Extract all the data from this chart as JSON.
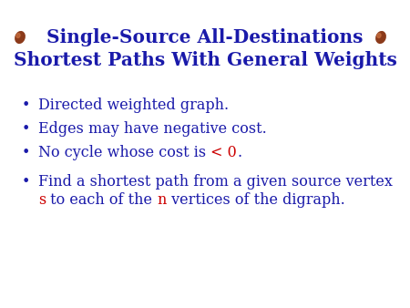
{
  "title_line1": "Single-Source All-Destinations",
  "title_line2": "Shortest Paths With General Weights",
  "title_color": "#1a1aaa",
  "background_color": "#ffffff",
  "bullet_color": "#1a1aaa",
  "text_color": "#1a1aaa",
  "red_color": "#cc0000",
  "bullet_symbol": "•",
  "bullet_items": [
    {
      "parts": [
        {
          "text": "Directed weighted graph.",
          "color": "#1a1aaa",
          "style": "normal"
        }
      ]
    },
    {
      "parts": [
        {
          "text": "Edges may have negative cost.",
          "color": "#1a1aaa",
          "style": "normal"
        }
      ]
    },
    {
      "parts": [
        {
          "text": "No cycle whose cost is ",
          "color": "#1a1aaa",
          "style": "normal"
        },
        {
          "text": "< 0",
          "color": "#cc0000",
          "style": "normal"
        },
        {
          "text": ".",
          "color": "#1a1aaa",
          "style": "normal"
        }
      ]
    },
    {
      "parts": [
        {
          "text": "Find a shortest path from a given source vertex",
          "color": "#1a1aaa",
          "style": "normal"
        }
      ],
      "continuation": [
        {
          "text": "s",
          "color": "#cc0000",
          "style": "normal"
        },
        {
          "text": " to each of the ",
          "color": "#1a1aaa",
          "style": "normal"
        },
        {
          "text": "n",
          "color": "#cc0000",
          "style": "normal"
        },
        {
          "text": " vertices of the digraph.",
          "color": "#1a1aaa",
          "style": "normal"
        }
      ]
    }
  ],
  "deco_color": "#8B3A1A",
  "deco_highlight": "#c87040",
  "title_fontsize": 14.5,
  "bullet_fontsize": 11.5,
  "figsize": [
    4.5,
    3.38
  ],
  "dpi": 100
}
